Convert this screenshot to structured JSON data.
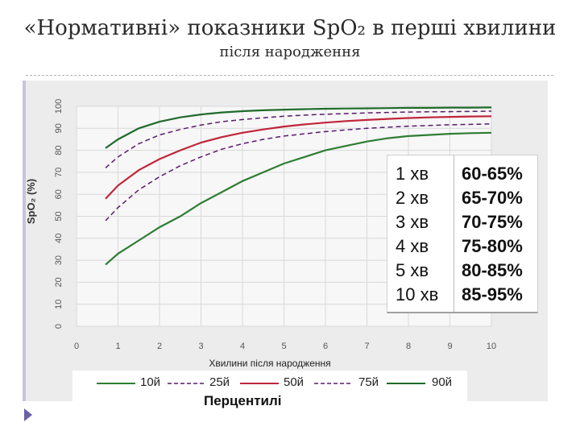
{
  "title": {
    "line1": "«Нормативні» показники SpO₂ в перші хвилини",
    "line2": "після народження"
  },
  "chart_data": {
    "type": "line",
    "ylabel": "SpO₂ (%)",
    "xlabel": "Хвилини після народження",
    "xlim": [
      0,
      10
    ],
    "ylim": [
      0,
      100
    ],
    "x_ticks": [
      0,
      1,
      2,
      3,
      4,
      5,
      6,
      7,
      8,
      9,
      10
    ],
    "y_ticks": [
      0,
      10,
      20,
      30,
      40,
      50,
      60,
      70,
      80,
      90,
      100
    ],
    "grid": true,
    "x": [
      0.7,
      1,
      1.5,
      2,
      2.5,
      3,
      3.5,
      4,
      4.5,
      5,
      5.5,
      6,
      6.5,
      7,
      7.5,
      8,
      8.5,
      9,
      9.5,
      10
    ],
    "series": [
      {
        "name": "10й",
        "color": "#2e7d32",
        "dashed": false,
        "values": [
          28,
          33,
          39,
          45,
          50,
          56,
          61,
          66,
          70,
          74,
          77,
          80,
          82,
          84,
          85.5,
          86.5,
          87,
          87.5,
          87.8,
          88
        ]
      },
      {
        "name": "25й",
        "color": "#5b1a6b",
        "dashed": true,
        "values": [
          48,
          54,
          62,
          68,
          73,
          77,
          80.5,
          83,
          85,
          86.5,
          87.5,
          88.5,
          89.3,
          90,
          90.5,
          91,
          91.3,
          91.6,
          91.8,
          92
        ]
      },
      {
        "name": "50й",
        "color": "#c0253a",
        "dashed": false,
        "values": [
          58,
          64,
          71,
          76,
          80,
          83.5,
          86,
          88,
          89.5,
          90.8,
          91.8,
          92.6,
          93.3,
          93.8,
          94.3,
          94.7,
          95,
          95.2,
          95.4,
          95.5
        ]
      },
      {
        "name": "75й",
        "color": "#5b1a6b",
        "dashed": true,
        "values": [
          72,
          77,
          83,
          87,
          89.5,
          91.5,
          93,
          94,
          94.8,
          95.5,
          96,
          96.4,
          96.7,
          97,
          97.2,
          97.4,
          97.5,
          97.6,
          97.7,
          97.8
        ]
      },
      {
        "name": "90й",
        "color": "#1f6b2a",
        "dashed": false,
        "values": [
          81,
          85,
          90,
          93,
          95,
          96.3,
          97.2,
          97.8,
          98.2,
          98.5,
          98.7,
          98.9,
          99,
          99.1,
          99.2,
          99.3,
          99.3,
          99.4,
          99.4,
          99.5
        ]
      }
    ]
  },
  "table": {
    "rows": [
      {
        "time": "1 хв",
        "range": "60-65%"
      },
      {
        "time": "2 хв",
        "range": "65-70%"
      },
      {
        "time": "3 хв",
        "range": "70-75%"
      },
      {
        "time": "4 хв",
        "range": "75-80%"
      },
      {
        "time": "5 хв",
        "range": "80-85%"
      },
      {
        "time": "10 хв",
        "range": "85-95%"
      }
    ]
  },
  "legend": {
    "percentiles_label": "Перцентилі",
    "items": [
      "10й",
      "25й",
      "50й",
      "75й",
      "90й"
    ]
  },
  "colors": {
    "frame_bg": "#ececec",
    "plot_bg": "#f7f7f7",
    "grid": "#d9d9d9",
    "accent": "#6a63a8"
  }
}
